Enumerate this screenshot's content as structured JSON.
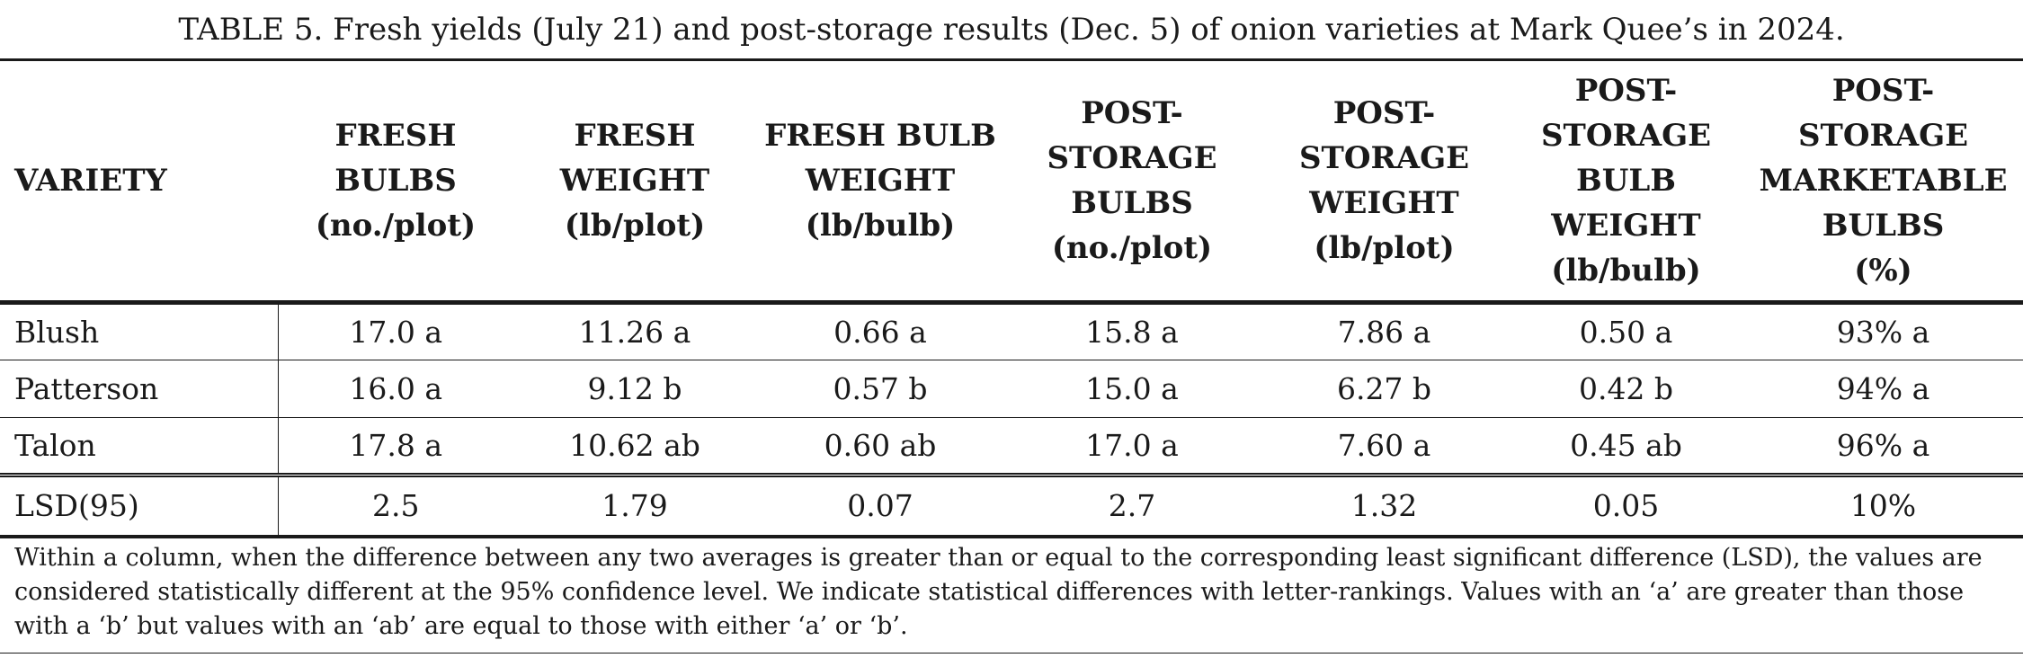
{
  "table": {
    "caption": "TABLE 5. Fresh yields (July 21) and post-storage results (Dec. 5) of onion varieties at Mark Quee’s in 2024.",
    "headers": [
      [
        "VARIETY"
      ],
      [
        "FRESH",
        "BULBS",
        "(no./plot)"
      ],
      [
        "FRESH",
        "WEIGHT",
        "(lb/plot)"
      ],
      [
        "FRESH BULB",
        "WEIGHT",
        "(lb/bulb)"
      ],
      [
        "POST-",
        "STORAGE",
        "BULBS",
        "(no./plot)"
      ],
      [
        "POST-",
        "STORAGE",
        "WEIGHT",
        "(lb/plot)"
      ],
      [
        "POST-",
        "STORAGE",
        "BULB",
        "WEIGHT",
        "(lb/bulb)"
      ],
      [
        "POST-",
        "STORAGE",
        "MARKETABLE",
        "BULBS",
        "(%)"
      ]
    ],
    "rows": [
      [
        "Blush",
        "17.0 a",
        "11.26 a",
        "0.66 a",
        "15.8 a",
        "7.86 a",
        "0.50 a",
        "93% a"
      ],
      [
        "Patterson",
        "16.0 a",
        "9.12 b",
        "0.57 b",
        "15.0 a",
        "6.27 b",
        "0.42 b",
        "94% a"
      ],
      [
        "Talon",
        "17.8 a",
        "10.62 ab",
        "0.60 ab",
        "17.0 a",
        "7.60 a",
        "0.45 ab",
        "96% a"
      ]
    ],
    "lsd_row": [
      "LSD(95)",
      "2.5",
      "1.79",
      "0.07",
      "2.7",
      "1.32",
      "0.05",
      "10%"
    ],
    "footnote": "Within a column, when the difference between any two averages is greater than or equal to the corresponding least significant difference (LSD), the values are considered statistically different at the 95% confidence level. We indicate statistical differences with letter-rankings. Values with an ‘a’ are greater than those with a ‘b’ but values with an ‘ab’ are equal to those with either ‘a’ or ‘b’."
  }
}
